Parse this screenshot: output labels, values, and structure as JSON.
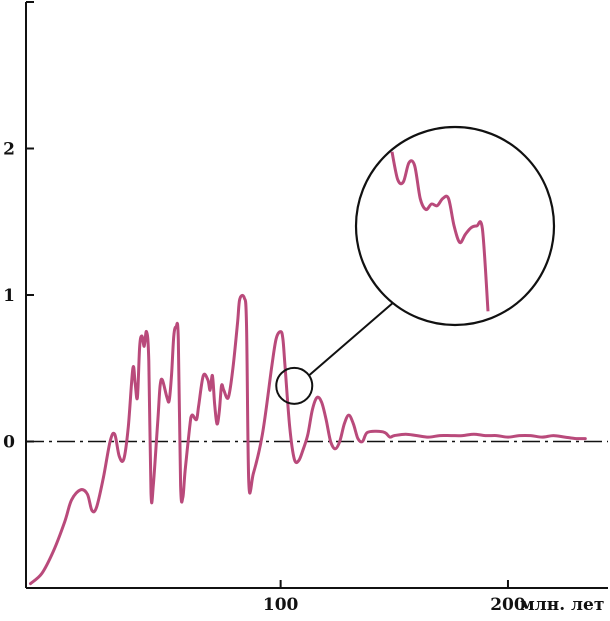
{
  "chart_data": {
    "type": "line",
    "title": "",
    "xlabel": "млн. лет",
    "ylabel": "",
    "xlim": [
      -12,
      244
    ],
    "ylim": [
      -1.0,
      3.0
    ],
    "x_ticks": [
      100,
      200
    ],
    "y_ticks": [
      0,
      1,
      2
    ],
    "y_ticks_unlabeled": [
      3
    ],
    "x_tick_labels": [
      "100",
      "200"
    ],
    "y_tick_labels": [
      "0",
      "1",
      "2"
    ],
    "reference_line": {
      "y": 0,
      "style": "dash-dot"
    },
    "grid": false,
    "legend": "none",
    "line_color": "#b94a7b",
    "axis_color": "#111111",
    "series": [
      {
        "values": [
          [
            -10,
            -0.97
          ],
          [
            -5,
            -0.9
          ],
          [
            0,
            -0.75
          ],
          [
            5,
            -0.55
          ],
          [
            8,
            -0.4
          ],
          [
            12,
            -0.33
          ],
          [
            15,
            -0.36
          ],
          [
            17,
            -0.47
          ],
          [
            19,
            -0.45
          ],
          [
            22,
            -0.25
          ],
          [
            25,
            0.0
          ],
          [
            27,
            0.05
          ],
          [
            29,
            -0.1
          ],
          [
            31,
            -0.12
          ],
          [
            33,
            0.1
          ],
          [
            35,
            0.5
          ],
          [
            36,
            0.4
          ],
          [
            37,
            0.3
          ],
          [
            38,
            0.65
          ],
          [
            39,
            0.72
          ],
          [
            40,
            0.65
          ],
          [
            41,
            0.75
          ],
          [
            42,
            0.55
          ],
          [
            43,
            -0.35
          ],
          [
            44,
            -0.3
          ],
          [
            46,
            0.15
          ],
          [
            47,
            0.38
          ],
          [
            48,
            0.42
          ],
          [
            50,
            0.3
          ],
          [
            51,
            0.28
          ],
          [
            52,
            0.45
          ],
          [
            53,
            0.72
          ],
          [
            54,
            0.78
          ],
          [
            55,
            0.7
          ],
          [
            56,
            -0.3
          ],
          [
            57,
            -0.38
          ],
          [
            58,
            -0.2
          ],
          [
            60,
            0.1
          ],
          [
            61,
            0.18
          ],
          [
            63,
            0.15
          ],
          [
            64,
            0.25
          ],
          [
            66,
            0.45
          ],
          [
            68,
            0.42
          ],
          [
            69,
            0.35
          ],
          [
            70,
            0.45
          ],
          [
            71,
            0.25
          ],
          [
            72,
            0.12
          ],
          [
            73,
            0.2
          ],
          [
            74,
            0.38
          ],
          [
            75,
            0.35
          ],
          [
            77,
            0.3
          ],
          [
            79,
            0.5
          ],
          [
            81,
            0.8
          ],
          [
            82,
            0.97
          ],
          [
            84,
            0.98
          ],
          [
            85,
            0.8
          ],
          [
            86,
            -0.28
          ],
          [
            88,
            -0.22
          ],
          [
            92,
            0.05
          ],
          [
            96,
            0.5
          ],
          [
            98,
            0.7
          ],
          [
            100,
            0.75
          ],
          [
            101,
            0.7
          ],
          [
            102,
            0.5
          ],
          [
            104,
            0.1
          ],
          [
            106,
            -0.12
          ],
          [
            108,
            -0.13
          ],
          [
            110,
            -0.05
          ],
          [
            112,
            0.05
          ],
          [
            114,
            0.22
          ],
          [
            116,
            0.3
          ],
          [
            118,
            0.27
          ],
          [
            120,
            0.15
          ],
          [
            122,
            0.0
          ],
          [
            124,
            -0.05
          ],
          [
            126,
            0.0
          ],
          [
            128,
            0.12
          ],
          [
            130,
            0.18
          ],
          [
            132,
            0.12
          ],
          [
            134,
            0.02
          ],
          [
            136,
            0.0
          ],
          [
            138,
            0.06
          ],
          [
            142,
            0.07
          ],
          [
            146,
            0.06
          ],
          [
            148,
            0.03
          ],
          [
            150,
            0.04
          ],
          [
            155,
            0.05
          ],
          [
            160,
            0.04
          ],
          [
            165,
            0.03
          ],
          [
            170,
            0.04
          ],
          [
            175,
            0.04
          ],
          [
            180,
            0.04
          ],
          [
            185,
            0.05
          ],
          [
            190,
            0.04
          ],
          [
            195,
            0.04
          ],
          [
            200,
            0.03
          ],
          [
            205,
            0.04
          ],
          [
            210,
            0.04
          ],
          [
            215,
            0.03
          ],
          [
            220,
            0.04
          ],
          [
            225,
            0.03
          ],
          [
            230,
            0.02
          ],
          [
            234,
            0.02
          ]
        ]
      }
    ],
    "annotations": [
      {
        "type": "magnifier",
        "focus_point": [
          106,
          0.38
        ],
        "detail_values": [
          1.8,
          1.3,
          1.25,
          1.6,
          1.55,
          0.95,
          0.75,
          0.85,
          0.82,
          0.95,
          0.95,
          0.45,
          0.15,
          0.3,
          0.42,
          0.45,
          0.4,
          -1.1
        ]
      }
    ]
  }
}
